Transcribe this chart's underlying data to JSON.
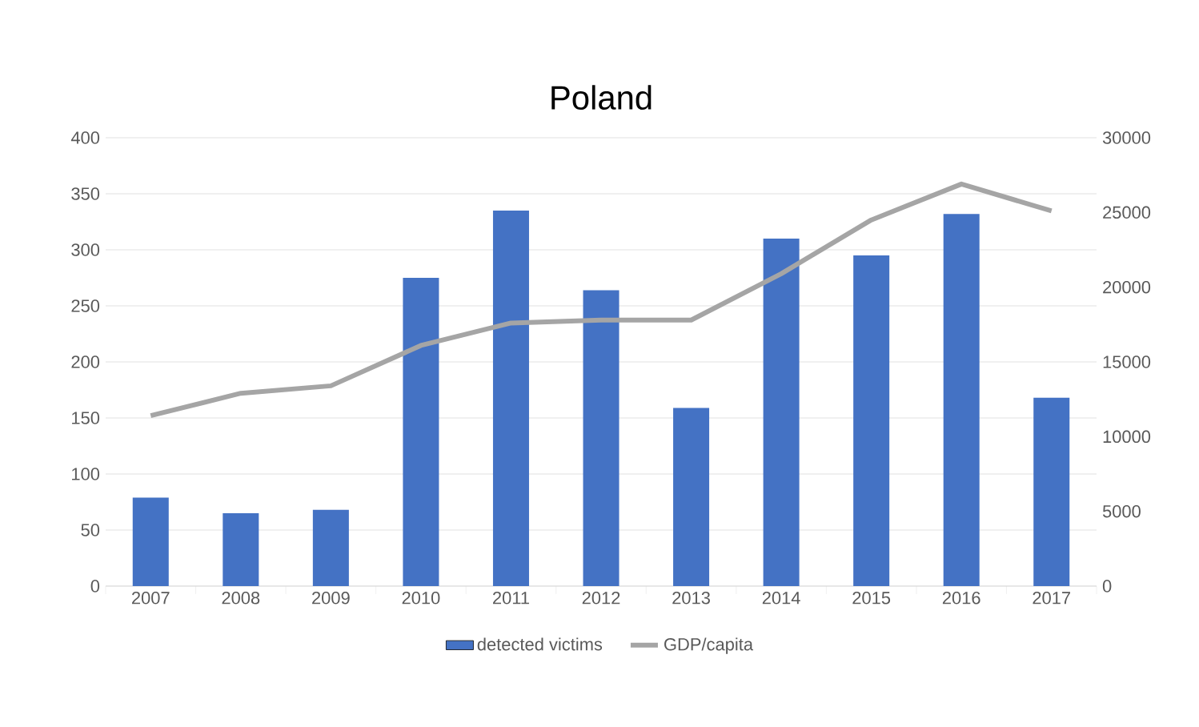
{
  "chart_data": {
    "type": "bar",
    "title": "Poland",
    "categories": [
      "2007",
      "2008",
      "2009",
      "2010",
      "2011",
      "2012",
      "2013",
      "2014",
      "2015",
      "2016",
      "2017"
    ],
    "series": [
      {
        "name": "detected victims",
        "color": "#4472c4",
        "values": [
          79,
          65,
          68,
          275,
          335,
          264,
          159,
          310,
          295,
          332,
          168
        ]
      },
      {
        "name": "GDP/capita",
        "type": "line",
        "axis": "y2",
        "color": "#a5a5a5",
        "values": [
          11400,
          12900,
          13400,
          16100,
          17600,
          17800,
          17800,
          20900,
          24500,
          26900,
          25100
        ]
      }
    ],
    "ylim": [
      0,
      400
    ],
    "yticks": [
      0,
      50,
      100,
      150,
      200,
      250,
      300,
      350,
      400
    ],
    "y2lim": [
      0,
      30000
    ],
    "y2ticks": [
      0,
      5000,
      10000,
      15000,
      20000,
      25000,
      30000
    ],
    "grid": "y",
    "legend": "bottom",
    "marker": "none",
    "line_style": "solid"
  }
}
